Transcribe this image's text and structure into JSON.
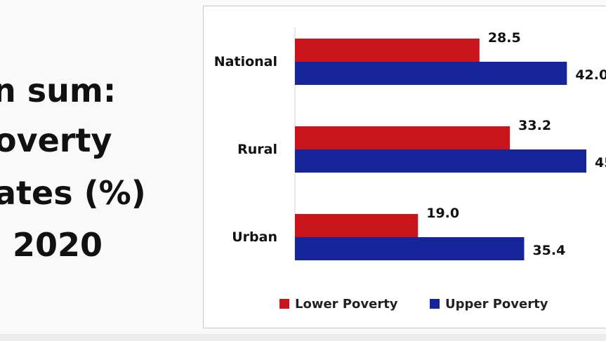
{
  "slide": {
    "title_lines": [
      "n sum:",
      "overty",
      "ates (%)",
      "2020"
    ]
  },
  "chart_data": {
    "type": "bar",
    "orientation": "horizontal",
    "categories": [
      "National",
      "Rural",
      "Urban"
    ],
    "series": [
      {
        "name": "Lower Poverty",
        "values": [
          28.5,
          33.2,
          19.0
        ],
        "labels": [
          "28.5",
          "33.2",
          "19.0"
        ],
        "color": "#c9141c"
      },
      {
        "name": "Upper Poverty",
        "values": [
          42.0,
          45.0,
          35.4
        ],
        "labels": [
          "42.0",
          "45",
          "35.4"
        ],
        "color": "#16259a"
      }
    ],
    "xlim": [
      0,
      45
    ],
    "grid": false,
    "legend_position": "bottom"
  }
}
